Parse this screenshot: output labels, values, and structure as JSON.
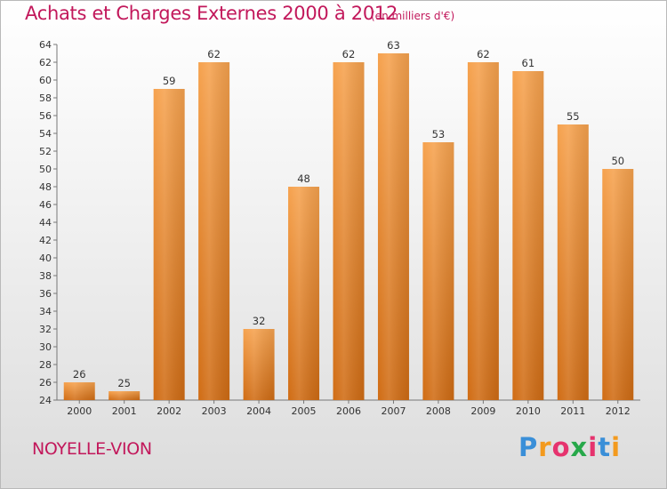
{
  "header": {
    "title": "Achats et Charges Externes 2000 à 2012",
    "subtitle": "(en milliers d'€)"
  },
  "footer": {
    "commune": "NOYELLE-VION",
    "logo": [
      "P",
      "r",
      "o",
      "x",
      "i",
      "t",
      "i"
    ],
    "logo_colors": [
      "#3a8fd8",
      "#f39a1e",
      "#e6336e",
      "#27a84a",
      "#e6336e",
      "#3a8fd8",
      "#f39a1e"
    ]
  },
  "chart_data": {
    "type": "bar",
    "title": "Achats et Charges Externes 2000 à 2012",
    "subtitle": "(en milliers d'€)",
    "categories": [
      "2000",
      "2001",
      "2002",
      "2003",
      "2004",
      "2005",
      "2006",
      "2007",
      "2008",
      "2009",
      "2010",
      "2011",
      "2012"
    ],
    "values": [
      26,
      25,
      59,
      62,
      32,
      48,
      62,
      63,
      53,
      62,
      61,
      55,
      50
    ],
    "ylim": [
      24,
      64
    ],
    "yticks": [
      24,
      26,
      28,
      30,
      32,
      34,
      36,
      38,
      40,
      42,
      44,
      46,
      48,
      50,
      52,
      54,
      56,
      58,
      60,
      62,
      64
    ],
    "grid": false,
    "bar_color_top": "#f6a24e",
    "bar_color_bottom": "#d06c14"
  }
}
